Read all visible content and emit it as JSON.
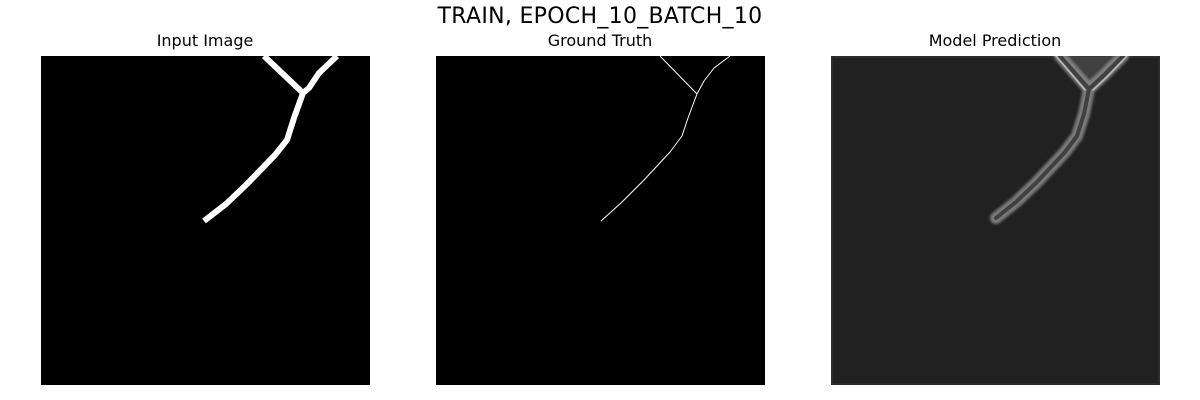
{
  "figure": {
    "title": "TRAIN, EPOCH_10_BATCH_10",
    "panels": [
      {
        "title": "Input Image"
      },
      {
        "title": "Ground Truth"
      },
      {
        "title": "Model Prediction"
      }
    ]
  },
  "colors": {
    "background": "#000000",
    "foreground": "#ffffff",
    "prediction_background": "#212121",
    "prediction_glow": "#7a7a7a"
  }
}
